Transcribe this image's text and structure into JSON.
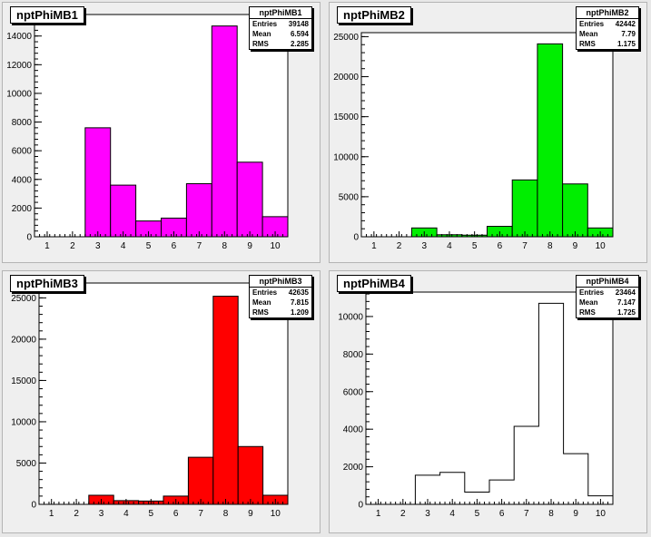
{
  "chart_data": [
    {
      "type": "bar",
      "title": "nptPhiMB1",
      "fill": "#ff00ff",
      "x": [
        3,
        4,
        5,
        6,
        7,
        8,
        9,
        10
      ],
      "values": [
        7600,
        3600,
        1100,
        1300,
        3700,
        14700,
        5200,
        1400
      ],
      "xlim": [
        0.5,
        10.5
      ],
      "ylim": [
        0,
        15500
      ],
      "xticks": [
        1,
        2,
        3,
        4,
        5,
        6,
        7,
        8,
        9,
        10
      ],
      "yticks": [
        0,
        2000,
        4000,
        6000,
        8000,
        10000,
        12000,
        14000
      ],
      "stats": {
        "name": "nptPhiMB1",
        "Entries": "39148",
        "Mean": "6.594",
        "RMS": "2.285"
      }
    },
    {
      "type": "bar",
      "title": "nptPhiMB2",
      "fill": "#00ee00",
      "x": [
        3,
        4,
        5,
        6,
        7,
        8,
        9,
        10
      ],
      "values": [
        1100,
        250,
        200,
        1300,
        7100,
        24100,
        6600,
        1100
      ],
      "xlim": [
        0.5,
        10.5
      ],
      "ylim": [
        0,
        25500
      ],
      "xticks": [
        1,
        2,
        3,
        4,
        5,
        6,
        7,
        8,
        9,
        10
      ],
      "yticks": [
        0,
        5000,
        10000,
        15000,
        20000,
        25000
      ],
      "stats": {
        "name": "nptPhiMB2",
        "Entries": "42442",
        "Mean": "7.79",
        "RMS": "1.175"
      }
    },
    {
      "type": "bar",
      "title": "nptPhiMB3",
      "fill": "#ff0000",
      "x": [
        3,
        4,
        5,
        6,
        7,
        8,
        9,
        10
      ],
      "values": [
        1100,
        450,
        400,
        1000,
        5700,
        25200,
        7000,
        1100
      ],
      "xlim": [
        0.5,
        10.5
      ],
      "ylim": [
        0,
        26800
      ],
      "xticks": [
        1,
        2,
        3,
        4,
        5,
        6,
        7,
        8,
        9,
        10
      ],
      "yticks": [
        0,
        5000,
        10000,
        15000,
        20000,
        25000
      ],
      "stats": {
        "name": "nptPhiMB3",
        "Entries": "42635",
        "Mean": "7.815",
        "RMS": "1.209"
      }
    },
    {
      "type": "bar",
      "title": "nptPhiMB4",
      "fill": "none",
      "x": [
        3,
        4,
        5,
        6,
        7,
        8,
        9,
        10
      ],
      "values": [
        1550,
        1700,
        650,
        1300,
        4150,
        10700,
        2700,
        450
      ],
      "xlim": [
        0.5,
        10.5
      ],
      "ylim": [
        0,
        11300
      ],
      "xticks": [
        1,
        2,
        3,
        4,
        5,
        6,
        7,
        8,
        9,
        10
      ],
      "yticks": [
        0,
        2000,
        4000,
        6000,
        8000,
        10000
      ],
      "stats": {
        "name": "nptPhiMB4",
        "Entries": "23464",
        "Mean": "7.147",
        "RMS": "1.725"
      }
    }
  ]
}
